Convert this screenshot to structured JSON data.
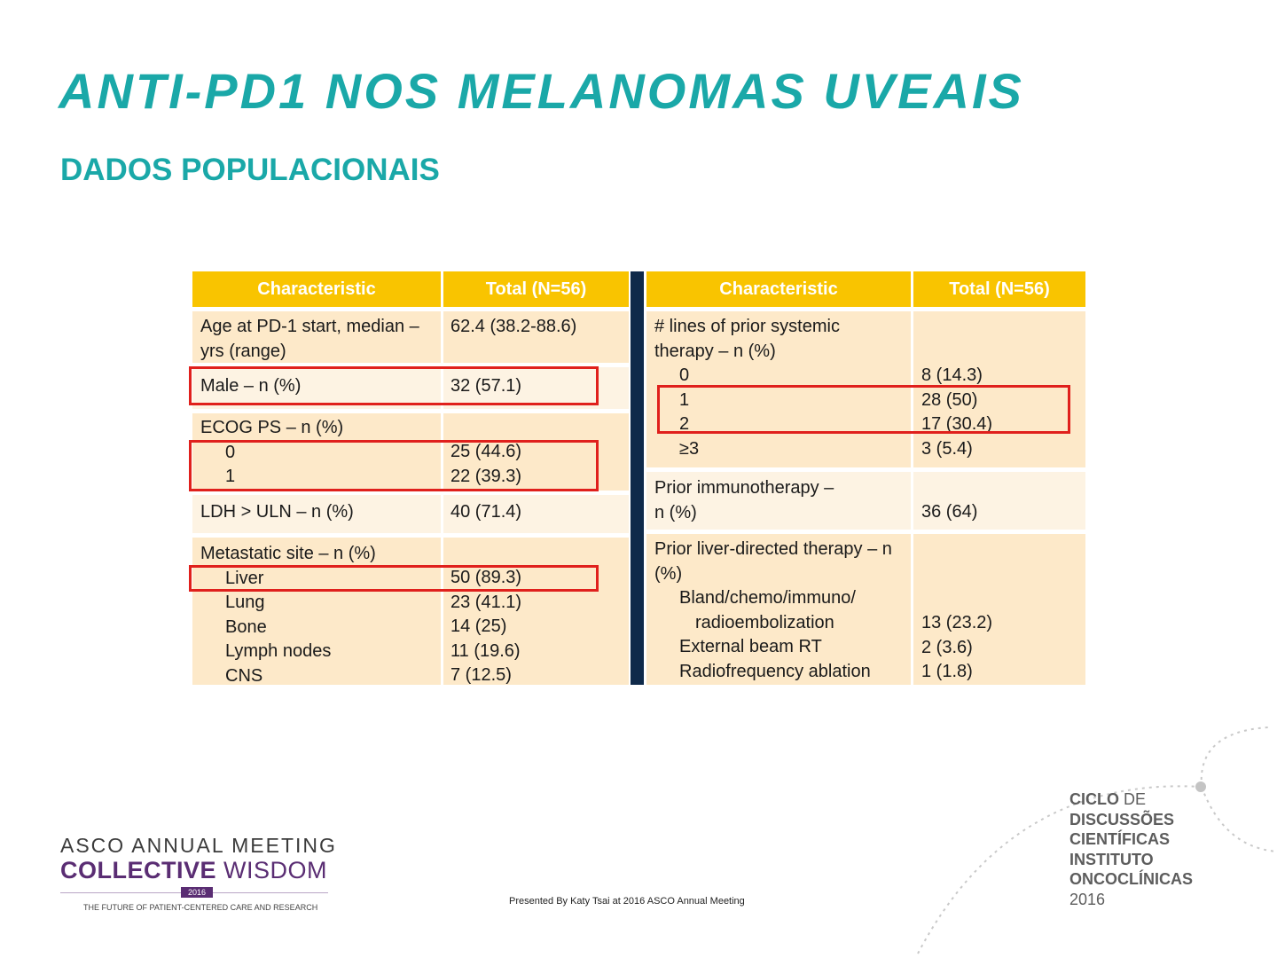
{
  "title": "ANTI-PD1 NOS MELANOMAS UVEAIS",
  "subtitle": "DADOS POPULACIONAIS",
  "colors": {
    "title_teal": "#1aa8a8",
    "header_yellow": "#f9c400",
    "row_fill": "#fde9c9",
    "divider_navy": "#0f2a4a",
    "highlight_red": "#e0201c"
  },
  "left_table": {
    "header_characteristic": "Characteristic",
    "header_total": "Total (N=56)",
    "age_label_1": "Age at PD-1 start, median –",
    "age_label_2": "yrs (range)",
    "age_value": "62.4 (38.2-88.6)",
    "male_label": "Male – n (%)",
    "male_value": "32 (57.1)",
    "ecog_label": "ECOG PS – n (%)",
    "ecog_0_label": "0",
    "ecog_0_value": "25 (44.6)",
    "ecog_1_label": "1",
    "ecog_1_value": "22 (39.3)",
    "ldh_label": "LDH > ULN – n (%)",
    "ldh_value": "40 (71.4)",
    "meta_label": "Metastatic site – n (%)",
    "liver_label": "Liver",
    "liver_value": "50 (89.3)",
    "lung_label": "Lung",
    "lung_value": "23 (41.1)",
    "bone_label": "Bone",
    "bone_value": "14 (25)",
    "lymph_label": "Lymph nodes",
    "lymph_value": "11 (19.6)",
    "cns_label": "CNS",
    "cns_value": "7 (12.5)"
  },
  "right_table": {
    "header_characteristic": "Characteristic",
    "header_total": "Total (N=56)",
    "lines_label_1": "# lines of prior systemic",
    "lines_label_2": "therapy – n (%)",
    "lines_0_label": "0",
    "lines_0_value": "8 (14.3)",
    "lines_1_label": "1",
    "lines_1_value": "28 (50)",
    "lines_2_label": "2",
    "lines_2_value": "17 (30.4)",
    "lines_3_label": "≥3",
    "lines_3_value": "3 (5.4)",
    "immuno_label_1": "Prior immunotherapy –",
    "immuno_label_2": "n (%)",
    "immuno_value": "36 (64)",
    "liver_dir_label_1": "Prior liver-directed therapy – n",
    "liver_dir_label_2": "(%)",
    "bland_label_1": "Bland/chemo/immuno/",
    "bland_label_2": "radioembolization",
    "bland_value": "13 (23.2)",
    "ebrt_label": "External beam RT",
    "ebrt_value": "2 (3.6)",
    "rfa_label": "Radiofrequency ablation",
    "rfa_value": "1 (1.8)"
  },
  "footer": {
    "presented": "Presented By Katy Tsai at 2016 ASCO Annual Meeting",
    "asco_line1": "ASCO ANNUAL MEETING",
    "asco_line2_bold": "COLLECTIVE",
    "asco_line2_light": " WISDOM",
    "asco_year": "2016",
    "asco_tagline": "THE FUTURE OF PATIENT-CENTERED CARE AND RESEARCH",
    "ciclo_line1_bold": "CICLO",
    "ciclo_line1_light": " DE",
    "ciclo_line2": "DISCUSSÕES",
    "ciclo_line3": "CIENTÍFICAS",
    "ciclo_line4": "INSTITUTO",
    "ciclo_line5": "ONCOCLÍNICAS",
    "ciclo_line6": "2016"
  }
}
